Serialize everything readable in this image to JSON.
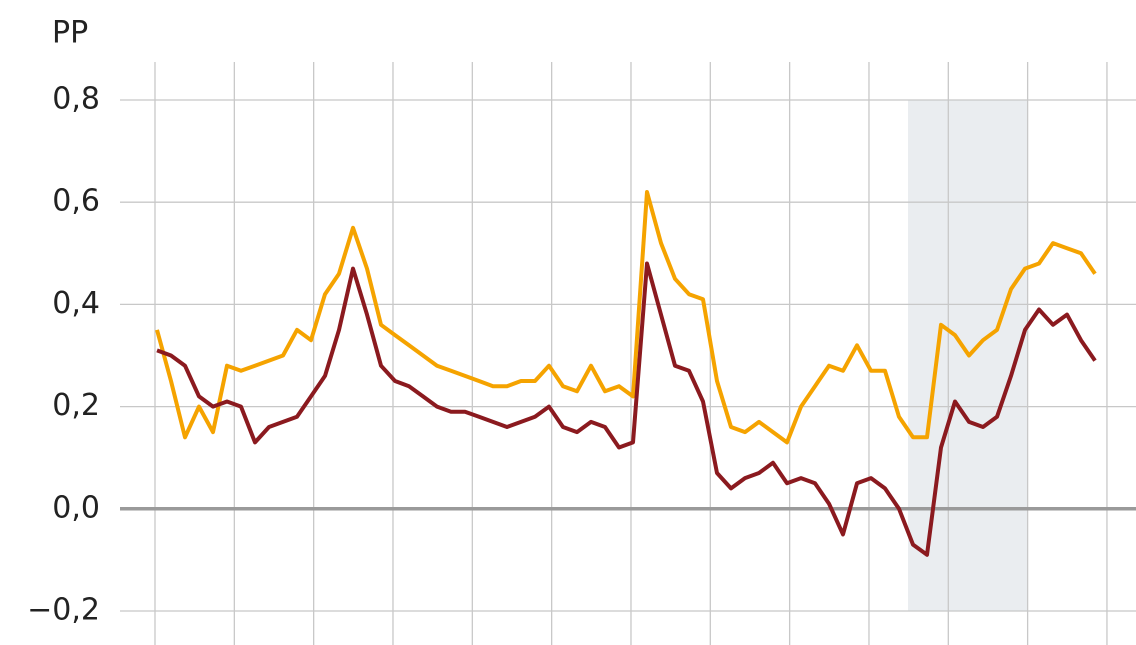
{
  "chart_data": {
    "type": "line",
    "title": "PP",
    "ylim": [
      -0.2,
      0.8
    ],
    "yticks": [
      {
        "value": 0.8,
        "label": "0,8"
      },
      {
        "value": 0.6,
        "label": "0,6"
      },
      {
        "value": 0.4,
        "label": "0,4"
      },
      {
        "value": 0.2,
        "label": "0,2"
      },
      {
        "value": 0,
        "label": "0,0"
      },
      {
        "value": -0.2,
        "label": "−0,2"
      }
    ],
    "grid": true,
    "series": [
      {
        "color": "#f5a300",
        "values": [
          0.35,
          0.25,
          0.14,
          0.2,
          0.15,
          0.28,
          0.27,
          0.28,
          0.29,
          0.3,
          0.35,
          0.33,
          0.42,
          0.46,
          0.55,
          0.47,
          0.36,
          0.34,
          0.32,
          0.3,
          0.28,
          0.27,
          0.26,
          0.25,
          0.24,
          0.24,
          0.25,
          0.25,
          0.28,
          0.24,
          0.23,
          0.28,
          0.23,
          0.24,
          0.22,
          0.62,
          0.52,
          0.45,
          0.42,
          0.41,
          0.25,
          0.16,
          0.15,
          0.17,
          0.15,
          0.13,
          0.2,
          0.24,
          0.28,
          0.27,
          0.32,
          0.27,
          0.27,
          0.18,
          0.14,
          0.14,
          0.36,
          0.34,
          0.3,
          0.33,
          0.35,
          0.43,
          0.47,
          0.48,
          0.52,
          0.51,
          0.5,
          0.46
        ]
      },
      {
        "color": "#8b1a1f",
        "values": [
          0.31,
          0.3,
          0.28,
          0.22,
          0.2,
          0.21,
          0.2,
          0.13,
          0.16,
          0.17,
          0.18,
          0.22,
          0.26,
          0.35,
          0.47,
          0.38,
          0.28,
          0.25,
          0.24,
          0.22,
          0.2,
          0.19,
          0.19,
          0.18,
          0.17,
          0.16,
          0.17,
          0.18,
          0.2,
          0.16,
          0.15,
          0.17,
          0.16,
          0.12,
          0.13,
          0.48,
          0.38,
          0.28,
          0.27,
          0.21,
          0.07,
          0.04,
          0.06,
          0.07,
          0.09,
          0.05,
          0.06,
          0.05,
          0.01,
          -0.05,
          0.05,
          0.06,
          0.04,
          0.0,
          -0.07,
          -0.09,
          0.12,
          0.21,
          0.17,
          0.16,
          0.18,
          0.26,
          0.35,
          0.39,
          0.36,
          0.38,
          0.33,
          0.29
        ]
      }
    ]
  }
}
